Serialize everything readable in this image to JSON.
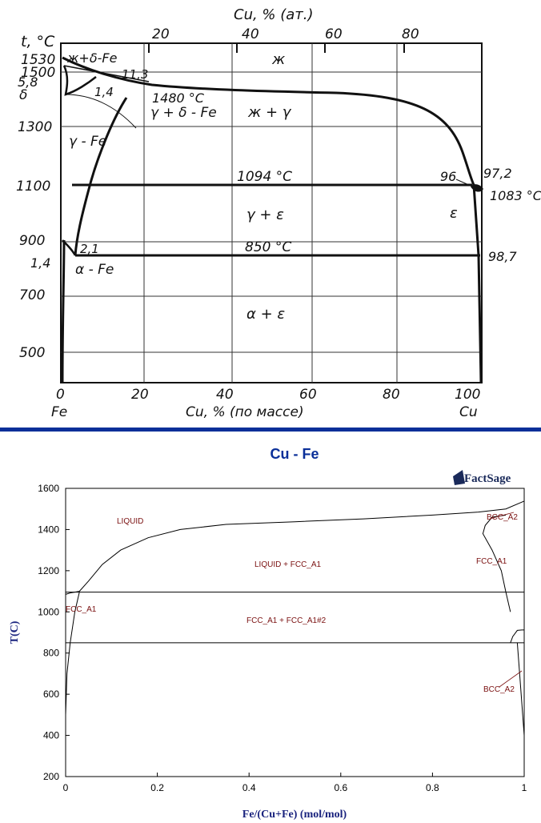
{
  "top_diagram": {
    "top_axis_title": "Cu, % (ат.)",
    "top_ticks": [
      "20",
      "40",
      "60",
      "80"
    ],
    "y_axis_title": "t, °C",
    "y_ticks": [
      "1530",
      "1500",
      "1300",
      "1100",
      "900",
      "700",
      "500"
    ],
    "bottom_ticks": [
      "0",
      "20",
      "40",
      "60",
      "80",
      "100"
    ],
    "bottom_axis_title": "Cu, % (по массе)",
    "left_element": "Fe",
    "right_element": "Cu",
    "labels": {
      "liquid_delta": "ж+δ-Fe",
      "v113": "11,3",
      "v58": "5,8",
      "delta": "δ",
      "v14_top": "1,4",
      "t1480": "1480 °C",
      "gamma_delta": "γ + δ - Fe",
      "liquid": "ж",
      "liquid_gamma": "ж + γ",
      "gamma_fe": "γ - Fe",
      "t1094": "1094 °C",
      "v96": "96",
      "v972": "97,2",
      "t1083": "1083 °C",
      "gamma_eps": "γ + ε",
      "eps": "ε",
      "v21": "2,1",
      "t850": "850 °C",
      "v14_bottom": "1,4",
      "alpha_fe": "α - Fe",
      "v987": "98,7",
      "alpha_eps": "α + ε"
    }
  },
  "bottom_chart": {
    "title": "Cu - Fe",
    "logo": "FactSage",
    "ylabel": "T(C)",
    "xlabel": "Fe/(Cu+Fe) (mol/mol)",
    "y_ticks": [
      "1600",
      "1400",
      "1200",
      "1000",
      "800",
      "600",
      "400",
      "200"
    ],
    "x_ticks": [
      "0",
      "0.2",
      "0.4",
      "0.6",
      "0.8",
      "1"
    ],
    "phases": {
      "liquid": "LIQUID",
      "liquid_fcc": "LIQUID + FCC_A1",
      "fcc_fcc2": "FCC_A1 + FCC_A1#2",
      "fcc_left": "FCC_A1",
      "fcc_right": "FCC_A1",
      "bcc_top": "BCC_A2",
      "bcc_bottom": "BCC_A2"
    }
  },
  "chart_data": {
    "type": "line",
    "title": "Cu - Fe",
    "xlabel": "Fe/(Cu+Fe) (mol/mol)",
    "ylabel": "T(C)",
    "xlim": [
      0,
      1
    ],
    "ylim": [
      200,
      1600
    ],
    "grid": false,
    "series": [
      {
        "x": [
          0.0,
          0.01,
          0.03,
          0.05,
          0.08,
          0.12,
          0.18,
          0.25,
          0.35,
          0.5,
          0.65,
          0.8,
          0.9,
          0.96,
          1.0
        ],
        "y": [
          1085,
          1092,
          1100,
          1150,
          1230,
          1300,
          1360,
          1400,
          1425,
          1438,
          1452,
          1470,
          1485,
          1500,
          1538
        ]
      },
      {
        "x": [
          0.0,
          1.0
        ],
        "y": [
          1096,
          1096
        ]
      },
      {
        "x": [
          0.0,
          1.0
        ],
        "y": [
          850,
          850
        ]
      },
      {
        "x": [
          0.0,
          0.003,
          0.01,
          0.02,
          0.03
        ],
        "y": [
          500,
          700,
          850,
          1000,
          1096
        ]
      },
      {
        "x": [
          0.96,
          0.93,
          0.915,
          0.91,
          0.93,
          0.95,
          0.96,
          0.97
        ],
        "y": [
          1470,
          1460,
          1420,
          1380,
          1300,
          1200,
          1096,
          1000
        ]
      },
      {
        "x": [
          0.97,
          0.975,
          0.985,
          0.995,
          1.0
        ],
        "y": [
          850,
          880,
          910,
          912,
          912
        ]
      },
      {
        "x": [
          0.985,
          0.99,
          1.0
        ],
        "y": [
          850,
          700,
          400
        ]
      }
    ]
  }
}
